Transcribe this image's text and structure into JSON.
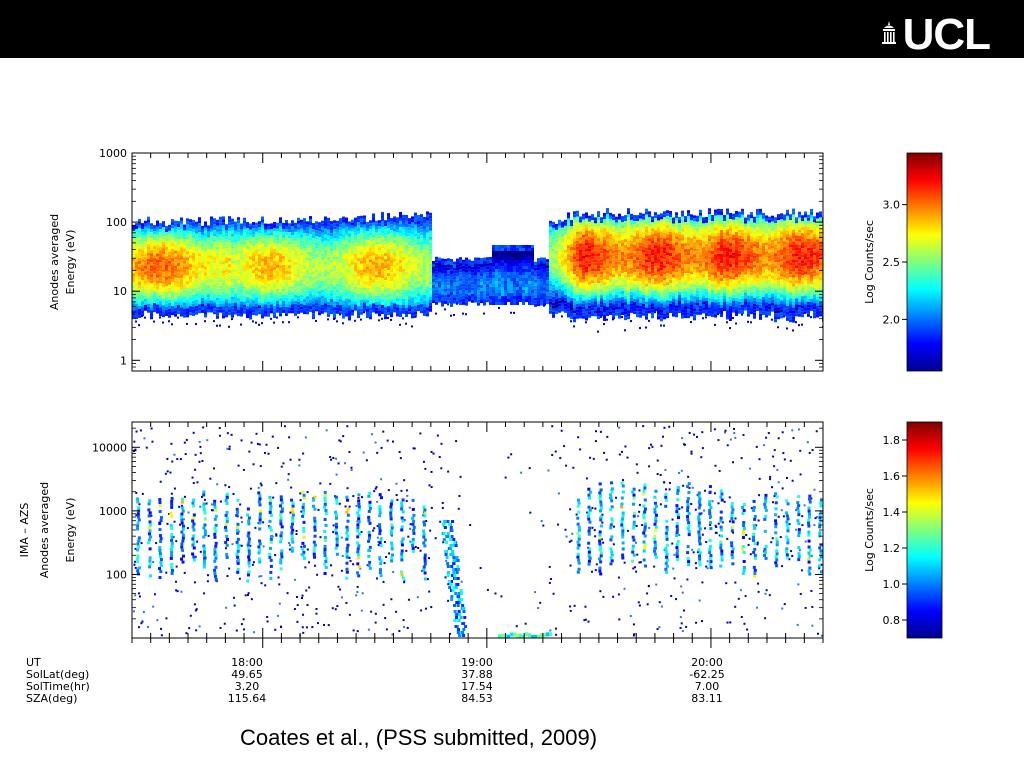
{
  "header": {
    "logo_text": "UCL",
    "logo_icon": "portico-icon"
  },
  "citation": "Coates et al., (PSS submitted, 2009)",
  "chart_data": [
    {
      "type": "heatmap",
      "panel": "top",
      "ylabel_lines": [
        "Anodes averaged",
        "Energy (eV)"
      ],
      "yscale": "log",
      "ylim": [
        0.7,
        1000
      ],
      "yticks": [
        1,
        10,
        100,
        1000
      ],
      "ytick_labels": [
        "1",
        "10",
        "100",
        "1000"
      ],
      "xlim": [
        "17:25",
        "20:30"
      ],
      "colorbar": {
        "label": "Log Counts/sec",
        "range": [
          1.55,
          3.45
        ],
        "ticks": [
          2.0,
          2.5,
          3.0
        ],
        "tick_labels": [
          "2.0",
          "2.5",
          "3.0"
        ]
      }
    },
    {
      "type": "heatmap",
      "panel": "bottom",
      "ylabel_lines": [
        "IMA – AZS",
        "Anodes averaged",
        "Energy (eV)"
      ],
      "yscale": "log",
      "ylim": [
        10,
        25000
      ],
      "yticks": [
        100,
        1000,
        10000
      ],
      "ytick_labels": [
        "100",
        "1000",
        "10000"
      ],
      "xlim": [
        "17:25",
        "20:30"
      ],
      "colorbar": {
        "label": "Log Counts/sec",
        "range": [
          0.7,
          1.9
        ],
        "ticks": [
          0.8,
          1.0,
          1.2,
          1.4,
          1.6,
          1.8
        ],
        "tick_labels": [
          "0.8",
          "1.0",
          "1.2",
          "1.4",
          "1.6",
          "1.8"
        ]
      }
    }
  ],
  "ephemeris": {
    "row_labels": [
      "UT",
      "SolLat(deg)",
      "SolTime(hr)",
      "SZA(deg)"
    ],
    "columns": [
      {
        "UT": "18:00",
        "SolLat": "49.65",
        "SolTime": "3.20",
        "SZA": "115.64"
      },
      {
        "UT": "19:00",
        "SolLat": "37.88",
        "SolTime": "17.54",
        "SZA": "84.53"
      },
      {
        "UT": "20:00",
        "SolLat": "-62.25",
        "SolTime": "7.00",
        "SZA": "83.11"
      }
    ]
  }
}
